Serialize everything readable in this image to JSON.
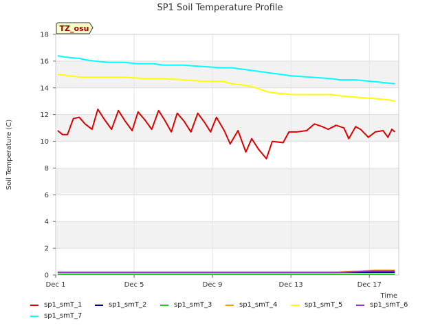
{
  "chart_data": {
    "type": "line",
    "title": "SP1 Soil Temperature Profile",
    "xlabel": "Time",
    "ylabel": "Soil Temperature (C)",
    "badge": "TZ_osu",
    "xlim": [
      1,
      18.5
    ],
    "ylim": [
      0,
      18
    ],
    "x_ticks": [
      {
        "value": 1,
        "label": "Dec 1"
      },
      {
        "value": 5,
        "label": "Dec 5"
      },
      {
        "value": 9,
        "label": "Dec 9"
      },
      {
        "value": 13,
        "label": "Dec 13"
      },
      {
        "value": 17,
        "label": "Dec 17"
      }
    ],
    "y_ticks": [
      0,
      2,
      4,
      6,
      8,
      10,
      12,
      14,
      16,
      18
    ],
    "grid": true,
    "legend_position": "bottom",
    "series": [
      {
        "name": "sp1_smT_1",
        "color": "#dd0000",
        "x": [
          1.1,
          1.35,
          1.6,
          1.9,
          2.2,
          2.5,
          2.85,
          3.15,
          3.5,
          3.85,
          4.2,
          4.55,
          4.9,
          5.2,
          5.55,
          5.9,
          6.25,
          6.55,
          6.9,
          7.2,
          7.55,
          7.9,
          8.25,
          8.6,
          8.9,
          9.2,
          9.6,
          9.9,
          10.3,
          10.7,
          11.0,
          11.35,
          11.75,
          12.05,
          12.6,
          12.9,
          13.3,
          13.8,
          14.2,
          14.6,
          14.9,
          15.3,
          15.7,
          15.95,
          16.3,
          16.55,
          16.95,
          17.3,
          17.7,
          17.95,
          18.15,
          18.3
        ],
        "y": [
          10.8,
          10.5,
          10.5,
          11.7,
          11.8,
          11.3,
          10.9,
          12.4,
          11.6,
          10.9,
          12.3,
          11.5,
          10.8,
          12.2,
          11.6,
          10.9,
          12.3,
          11.6,
          10.7,
          12.1,
          11.5,
          10.7,
          12.1,
          11.4,
          10.7,
          11.8,
          10.8,
          9.8,
          10.8,
          9.2,
          10.2,
          9.4,
          8.7,
          10.0,
          9.9,
          10.7,
          10.7,
          10.8,
          11.3,
          11.1,
          10.9,
          11.2,
          11.0,
          10.2,
          11.1,
          10.9,
          10.3,
          10.7,
          10.8,
          10.3,
          10.9,
          10.7
        ]
      },
      {
        "name": "sp1_smT_2",
        "color": "#00008b",
        "x": [
          1.1,
          18.3
        ],
        "y": [
          0.2,
          0.2
        ]
      },
      {
        "name": "sp1_smT_3",
        "color": "#22cc22",
        "x": [
          1.1,
          18.3
        ],
        "y": [
          0.05,
          0.05
        ]
      },
      {
        "name": "sp1_smT_4",
        "color": "#ff9900",
        "x": [
          1.1,
          15.3,
          15.8,
          16.6,
          17.3,
          18.3
        ],
        "y": [
          0.2,
          0.2,
          0.25,
          0.3,
          0.35,
          0.35
        ]
      },
      {
        "name": "sp1_smT_5",
        "color": "#ffff00",
        "x": [
          1.1,
          1.7,
          2.3,
          3.5,
          4.5,
          5.5,
          6.5,
          7.5,
          8.5,
          9.5,
          10.0,
          10.6,
          11.0,
          11.4,
          11.8,
          12.3,
          13.0,
          14.0,
          15.0,
          15.5,
          16.3,
          17.2,
          18.0,
          18.3
        ],
        "y": [
          15.0,
          14.9,
          14.8,
          14.8,
          14.8,
          14.7,
          14.7,
          14.6,
          14.5,
          14.5,
          14.3,
          14.2,
          14.1,
          13.9,
          13.7,
          13.6,
          13.5,
          13.5,
          13.5,
          13.4,
          13.3,
          13.2,
          13.1,
          13.0
        ]
      },
      {
        "name": "sp1_smT_6",
        "color": "#9933cc",
        "x": [
          1.1,
          15.5,
          16.5,
          17.3,
          18.3
        ],
        "y": [
          0.2,
          0.2,
          0.25,
          0.3,
          0.3
        ]
      },
      {
        "name": "sp1_smT_7",
        "color": "#00ffff",
        "x": [
          1.1,
          1.5,
          2.2,
          2.5,
          3.0,
          3.7,
          4.5,
          5.2,
          6.0,
          6.5,
          7.5,
          8.5,
          9.5,
          10.0,
          10.5,
          11.0,
          11.5,
          12.0,
          12.5,
          13.0,
          14.0,
          15.0,
          15.5,
          16.3,
          17.0,
          17.7,
          18.3
        ],
        "y": [
          16.4,
          16.3,
          16.2,
          16.1,
          16.0,
          15.9,
          15.9,
          15.8,
          15.8,
          15.7,
          15.7,
          15.6,
          15.5,
          15.5,
          15.4,
          15.3,
          15.2,
          15.1,
          15.0,
          14.9,
          14.8,
          14.7,
          14.6,
          14.6,
          14.5,
          14.4,
          14.3
        ]
      }
    ]
  }
}
